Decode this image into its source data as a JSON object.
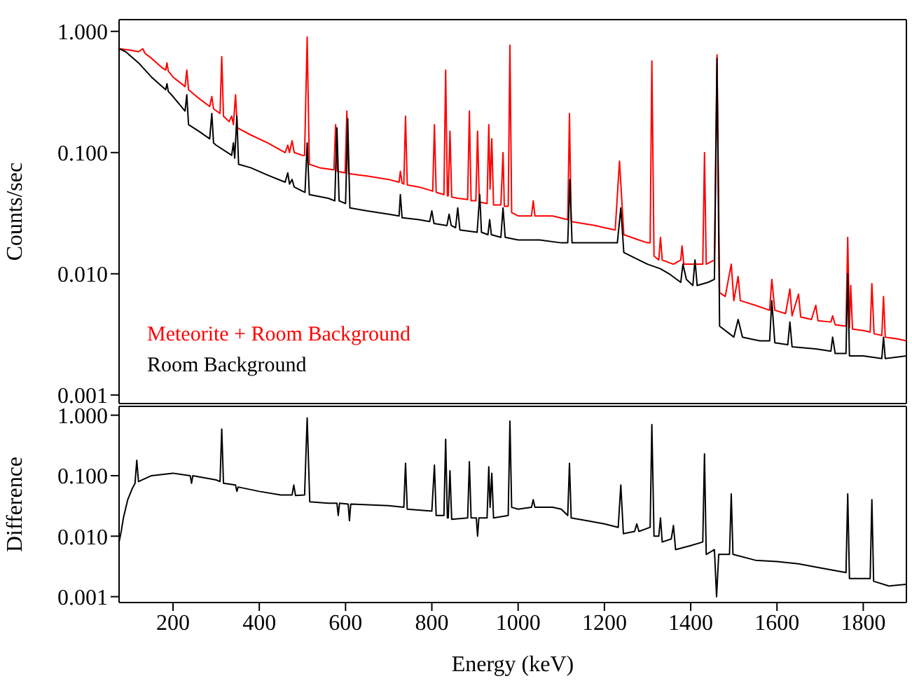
{
  "chart_data": [
    {
      "type": "line",
      "ylabel": "Counts/sec",
      "log": "y",
      "legend": "bottom left",
      "tick_labels": "y",
      "xlim": [
        75,
        1900
      ],
      "xticks": [
        200,
        400,
        600,
        800,
        1000,
        1200,
        1400,
        1600,
        1800
      ],
      "ylim": [
        0.00085,
        1.25
      ],
      "yticks": [
        {
          "value": 0.001,
          "label": "0.001"
        },
        {
          "value": 0.01,
          "label": "0.010"
        },
        {
          "value": 0.1,
          "label": "0.100"
        },
        {
          "value": 1,
          "label": "1.000"
        }
      ],
      "series": [
        {
          "name": "Meteorite + Room Background",
          "color": "#ff0000",
          "x": [
            75,
            100,
            120,
            130,
            135,
            150,
            175,
            183,
            186,
            189,
            200,
            228,
            232,
            236,
            260,
            285,
            290,
            294,
            309,
            313,
            317,
            330,
            336,
            340,
            345,
            349,
            380,
            420,
            460,
            466,
            470,
            476,
            481,
            500,
            505,
            511,
            516,
            540,
            573,
            577,
            581,
            599,
            603,
            607,
            650,
            700,
            724,
            727,
            731,
            735,
            739,
            743,
            770,
            795,
            802,
            806,
            810,
            828,
            832,
            836,
            838,
            842,
            846,
            860,
            883,
            887,
            891,
            902,
            906,
            910,
            928,
            932,
            935,
            939,
            943,
            960,
            965,
            968,
            977,
            981,
            985,
            1000,
            1031,
            1035,
            1039,
            1080,
            1115,
            1119,
            1123,
            1150,
            1180,
            1200,
            1225,
            1235,
            1245,
            1280,
            1300,
            1306,
            1310,
            1315,
            1326,
            1330,
            1334,
            1360,
            1377,
            1380,
            1384,
            1400,
            1428,
            1432,
            1436,
            1455,
            1461,
            1467,
            1480,
            1494,
            1500,
            1510,
            1515,
            1550,
            1583,
            1588,
            1595,
            1620,
            1630,
            1635,
            1650,
            1655,
            1680,
            1690,
            1695,
            1725,
            1729,
            1735,
            1760,
            1764,
            1768,
            1771,
            1775,
            1800,
            1816,
            1820,
            1825,
            1843,
            1847,
            1851,
            1880,
            1900
          ],
          "values": [
            0.72,
            0.7,
            0.68,
            0.72,
            0.66,
            0.6,
            0.5,
            0.48,
            0.55,
            0.47,
            0.42,
            0.35,
            0.48,
            0.33,
            0.28,
            0.24,
            0.29,
            0.23,
            0.21,
            0.62,
            0.2,
            0.18,
            0.2,
            0.17,
            0.3,
            0.16,
            0.14,
            0.12,
            0.1,
            0.115,
            0.1,
            0.125,
            0.1,
            0.095,
            0.095,
            0.9,
            0.08,
            0.075,
            0.072,
            0.17,
            0.07,
            0.068,
            0.22,
            0.067,
            0.064,
            0.06,
            0.057,
            0.07,
            0.056,
            0.055,
            0.2,
            0.054,
            0.052,
            0.049,
            0.048,
            0.17,
            0.047,
            0.045,
            0.48,
            0.044,
            0.044,
            0.15,
            0.043,
            0.042,
            0.041,
            0.22,
            0.04,
            0.04,
            0.15,
            0.039,
            0.038,
            0.17,
            0.05,
            0.13,
            0.037,
            0.037,
            0.1,
            0.036,
            0.036,
            0.77,
            0.032,
            0.03,
            0.03,
            0.04,
            0.03,
            0.03,
            0.028,
            0.21,
            0.027,
            0.026,
            0.025,
            0.024,
            0.023,
            0.085,
            0.021,
            0.019,
            0.018,
            0.018,
            0.57,
            0.014,
            0.013,
            0.02,
            0.013,
            0.012,
            0.013,
            0.017,
            0.012,
            0.012,
            0.012,
            0.1,
            0.012,
            0.013,
            0.64,
            0.007,
            0.0065,
            0.012,
            0.006,
            0.0095,
            0.006,
            0.0055,
            0.005,
            0.009,
            0.005,
            0.0047,
            0.0075,
            0.0045,
            0.0068,
            0.0044,
            0.0042,
            0.0055,
            0.0041,
            0.004,
            0.0045,
            0.0038,
            0.0037,
            0.02,
            0.0036,
            0.008,
            0.0035,
            0.0034,
            0.0033,
            0.0083,
            0.0032,
            0.0031,
            0.0065,
            0.003,
            0.0029,
            0.0028
          ]
        },
        {
          "name": "Room Background",
          "color": "#000000",
          "x": [
            75,
            90,
            120,
            150,
            183,
            186,
            189,
            200,
            228,
            232,
            236,
            260,
            285,
            290,
            294,
            300,
            336,
            340,
            343,
            348,
            352,
            380,
            420,
            460,
            466,
            470,
            476,
            481,
            500,
            506,
            511,
            516,
            560,
            575,
            580,
            585,
            600,
            605,
            610,
            650,
            700,
            724,
            727,
            731,
            770,
            795,
            800,
            805,
            835,
            840,
            845,
            855,
            860,
            865,
            905,
            911,
            915,
            930,
            934,
            938,
            960,
            965,
            970,
            1000,
            1050,
            1100,
            1115,
            1120,
            1125,
            1160,
            1200,
            1230,
            1238,
            1245,
            1280,
            1300,
            1330,
            1350,
            1377,
            1382,
            1390,
            1405,
            1410,
            1415,
            1440,
            1455,
            1461,
            1467,
            1490,
            1500,
            1510,
            1520,
            1560,
            1583,
            1588,
            1595,
            1625,
            1630,
            1635,
            1690,
            1725,
            1729,
            1735,
            1760,
            1764,
            1768,
            1800,
            1843,
            1847,
            1851,
            1900
          ],
          "values": [
            0.72,
            0.68,
            0.55,
            0.42,
            0.33,
            0.37,
            0.32,
            0.29,
            0.22,
            0.3,
            0.17,
            0.15,
            0.13,
            0.21,
            0.12,
            0.115,
            0.095,
            0.12,
            0.09,
            0.2,
            0.08,
            0.075,
            0.065,
            0.057,
            0.068,
            0.055,
            0.06,
            0.052,
            0.048,
            0.047,
            0.12,
            0.045,
            0.042,
            0.04,
            0.16,
            0.04,
            0.038,
            0.19,
            0.035,
            0.033,
            0.031,
            0.03,
            0.045,
            0.029,
            0.028,
            0.027,
            0.033,
            0.026,
            0.025,
            0.031,
            0.025,
            0.024,
            0.035,
            0.023,
            0.022,
            0.045,
            0.022,
            0.021,
            0.028,
            0.021,
            0.02,
            0.035,
            0.02,
            0.019,
            0.019,
            0.018,
            0.018,
            0.06,
            0.018,
            0.018,
            0.018,
            0.018,
            0.035,
            0.015,
            0.013,
            0.012,
            0.011,
            0.01,
            0.0085,
            0.012,
            0.009,
            0.008,
            0.013,
            0.008,
            0.0085,
            0.009,
            0.6,
            0.0037,
            0.0032,
            0.003,
            0.0042,
            0.003,
            0.0028,
            0.0028,
            0.006,
            0.0027,
            0.0026,
            0.004,
            0.0025,
            0.0024,
            0.0023,
            0.003,
            0.0022,
            0.0022,
            0.01,
            0.0021,
            0.0021,
            0.002,
            0.003,
            0.002,
            0.0021
          ]
        }
      ]
    },
    {
      "type": "line",
      "xlabel": "Energy (keV)",
      "ylabel": "Difference",
      "log": "y",
      "xlim": [
        75,
        1900
      ],
      "xticks": [
        200,
        400,
        600,
        800,
        1000,
        1200,
        1400,
        1600,
        1800
      ],
      "ylim": [
        0.0008,
        1.4
      ],
      "yticks": [
        {
          "value": 0.001,
          "label": "0.001"
        },
        {
          "value": 0.01,
          "label": "0.010"
        },
        {
          "value": 0.1,
          "label": "0.100"
        },
        {
          "value": 1,
          "label": "1.000"
        }
      ],
      "series": [
        {
          "color": "#000000",
          "x": [
            75,
            80,
            85,
            95,
            105,
            112,
            116,
            120,
            150,
            200,
            240,
            243,
            246,
            300,
            309,
            313,
            317,
            345,
            348,
            351,
            400,
            450,
            476,
            480,
            484,
            505,
            511,
            517,
            560,
            580,
            583,
            586,
            606,
            609,
            612,
            700,
            735,
            739,
            743,
            800,
            806,
            810,
            828,
            832,
            836,
            838,
            842,
            846,
            883,
            887,
            891,
            903,
            906,
            909,
            928,
            932,
            935,
            939,
            943,
            977,
            981,
            985,
            1000,
            1031,
            1035,
            1039,
            1080,
            1100,
            1115,
            1119,
            1123,
            1160,
            1200,
            1232,
            1238,
            1244,
            1270,
            1275,
            1280,
            1306,
            1310,
            1315,
            1326,
            1330,
            1334,
            1355,
            1360,
            1365,
            1400,
            1428,
            1432,
            1436,
            1455,
            1460,
            1465,
            1490,
            1494,
            1498,
            1550,
            1600,
            1650,
            1700,
            1760,
            1764,
            1768,
            1816,
            1820,
            1824,
            1860,
            1900
          ],
          "values": [
            0.008,
            0.012,
            0.02,
            0.04,
            0.06,
            0.075,
            0.18,
            0.08,
            0.1,
            0.11,
            0.1,
            0.075,
            0.1,
            0.085,
            0.08,
            0.59,
            0.075,
            0.07,
            0.055,
            0.065,
            0.055,
            0.048,
            0.048,
            0.07,
            0.047,
            0.048,
            0.9,
            0.037,
            0.035,
            0.035,
            0.022,
            0.035,
            0.034,
            0.018,
            0.034,
            0.032,
            0.03,
            0.16,
            0.028,
            0.026,
            0.15,
            0.022,
            0.022,
            0.4,
            0.02,
            0.02,
            0.12,
            0.019,
            0.02,
            0.17,
            0.02,
            0.02,
            0.01,
            0.02,
            0.02,
            0.14,
            0.03,
            0.11,
            0.02,
            0.022,
            0.8,
            0.03,
            0.028,
            0.03,
            0.04,
            0.03,
            0.03,
            0.028,
            0.022,
            0.16,
            0.02,
            0.018,
            0.016,
            0.014,
            0.07,
            0.011,
            0.012,
            0.016,
            0.012,
            0.014,
            0.7,
            0.01,
            0.01,
            0.02,
            0.008,
            0.009,
            0.015,
            0.006,
            0.007,
            0.008,
            0.23,
            0.005,
            0.006,
            0.001,
            0.005,
            0.005,
            0.05,
            0.005,
            0.004,
            0.0038,
            0.0035,
            0.003,
            0.0025,
            0.05,
            0.002,
            0.002,
            0.04,
            0.0018,
            0.0015,
            0.0016
          ]
        }
      ]
    }
  ]
}
